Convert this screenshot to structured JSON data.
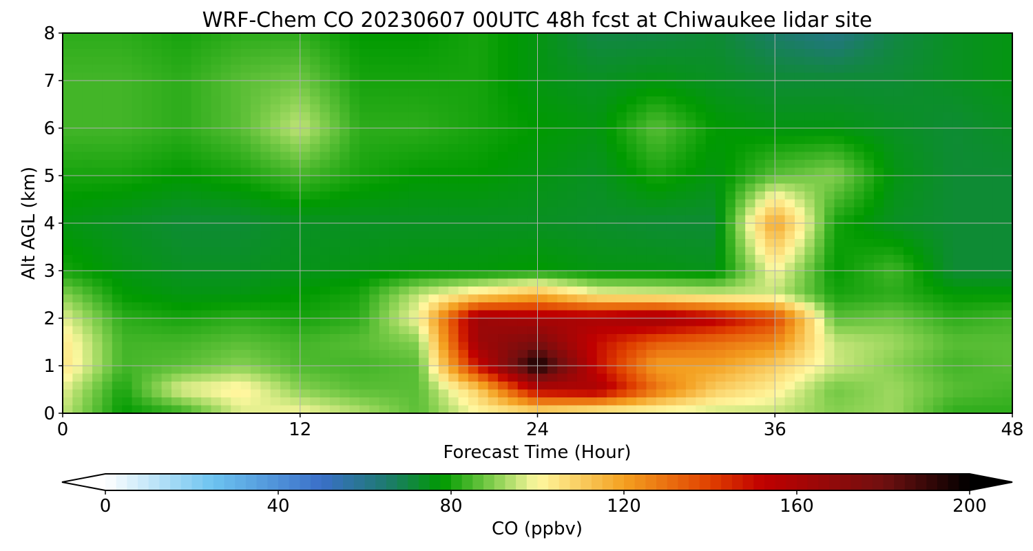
{
  "chart_data": {
    "type": "heatmap",
    "title": "WRF-Chem CO  20230607 00UTC 48h fcst at Chiwaukee lidar site",
    "xlabel": "Forecast Time (Hour)",
    "ylabel": "Alt AGL (km)",
    "xlim": [
      0,
      48
    ],
    "ylim": [
      0,
      8
    ],
    "x_ticks": [
      0,
      12,
      24,
      36,
      48
    ],
    "y_ticks": [
      0,
      1,
      2,
      3,
      4,
      5,
      6,
      7,
      8
    ],
    "grid": true,
    "x": [
      0,
      3,
      6,
      9,
      12,
      15,
      18,
      21,
      24,
      27,
      30,
      33,
      36,
      39,
      42,
      45,
      48
    ],
    "y": [
      0,
      0.5,
      1,
      1.5,
      2,
      2.5,
      3,
      4,
      5,
      6,
      7,
      8
    ],
    "z": [
      [
        95,
        78,
        82,
        97,
        100,
        94,
        86,
        100,
        103,
        97,
        97,
        95,
        95,
        90,
        92,
        82,
        82
      ],
      [
        98,
        80,
        98,
        102,
        90,
        86,
        86,
        110,
        155,
        160,
        130,
        110,
        102,
        88,
        92,
        86,
        84
      ],
      [
        105,
        84,
        86,
        90,
        85,
        84,
        86,
        150,
        200,
        150,
        120,
        120,
        110,
        96,
        90,
        84,
        86
      ],
      [
        104,
        84,
        84,
        86,
        84,
        86,
        90,
        165,
        175,
        150,
        135,
        130,
        125,
        95,
        92,
        86,
        86
      ],
      [
        98,
        82,
        80,
        82,
        80,
        82,
        100,
        165,
        160,
        160,
        165,
        155,
        140,
        86,
        88,
        82,
        84
      ],
      [
        90,
        78,
        76,
        76,
        78,
        80,
        95,
        105,
        115,
        100,
        98,
        96,
        95,
        80,
        82,
        78,
        78
      ],
      [
        80,
        76,
        74,
        74,
        75,
        76,
        77,
        77,
        78,
        76,
        76,
        75,
        100,
        78,
        84,
        72,
        72
      ],
      [
        76,
        74,
        72,
        72,
        74,
        74,
        74,
        74,
        74,
        73,
        72,
        72,
        120,
        80,
        74,
        72,
        72
      ],
      [
        80,
        80,
        78,
        80,
        84,
        80,
        78,
        78,
        76,
        74,
        80,
        76,
        86,
        90,
        76,
        72,
        72
      ],
      [
        84,
        84,
        82,
        86,
        95,
        82,
        82,
        80,
        78,
        76,
        86,
        78,
        76,
        76,
        74,
        72,
        74
      ],
      [
        84,
        84,
        82,
        86,
        88,
        80,
        80,
        80,
        76,
        74,
        76,
        74,
        72,
        72,
        72,
        74,
        76
      ],
      [
        82,
        82,
        80,
        82,
        82,
        78,
        78,
        80,
        76,
        70,
        70,
        72,
        66,
        62,
        70,
        74,
        76
      ]
    ],
    "colorbar": {
      "label": "CO  (ppbv)",
      "min": 0,
      "max": 200,
      "ticks": [
        0,
        40,
        80,
        120,
        160,
        200
      ],
      "extend": "both",
      "stops": [
        {
          "v": 0,
          "c": "#ffffff"
        },
        {
          "v": 25,
          "c": "#6cc3f0"
        },
        {
          "v": 50,
          "c": "#3a6fc8"
        },
        {
          "v": 65,
          "c": "#1e7a70"
        },
        {
          "v": 78,
          "c": "#009a00"
        },
        {
          "v": 90,
          "c": "#86d050"
        },
        {
          "v": 100,
          "c": "#fff8a0"
        },
        {
          "v": 120,
          "c": "#f4a020"
        },
        {
          "v": 140,
          "c": "#e04000"
        },
        {
          "v": 152,
          "c": "#c00000"
        },
        {
          "v": 180,
          "c": "#701010"
        },
        {
          "v": 200,
          "c": "#000000"
        }
      ]
    }
  }
}
